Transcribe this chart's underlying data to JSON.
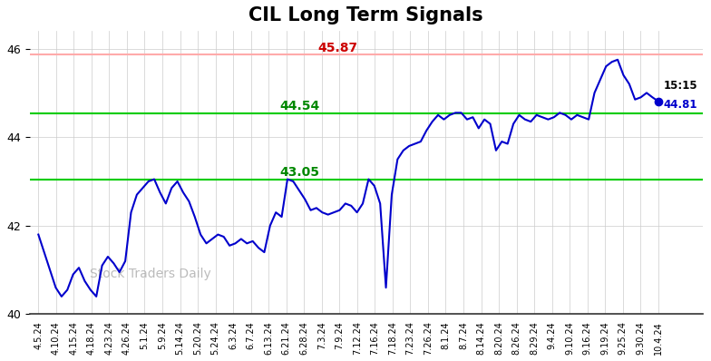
{
  "title": "CIL Long Term Signals",
  "watermark": "Stock Traders Daily",
  "hline_red": 45.87,
  "hline_green1": 44.54,
  "hline_green2": 43.05,
  "last_label_time": "15:15",
  "last_label_price": 44.81,
  "ylim": [
    40,
    46.4
  ],
  "xlabels": [
    "4.5.24",
    "4.10.24",
    "4.15.24",
    "4.18.24",
    "4.23.24",
    "4.26.24",
    "5.1.24",
    "5.9.24",
    "5.14.24",
    "5.20.24",
    "5.24.24",
    "6.3.24",
    "6.7.24",
    "6.13.24",
    "6.21.24",
    "6.28.24",
    "7.3.24",
    "7.9.24",
    "7.12.24",
    "7.16.24",
    "7.18.24",
    "7.23.24",
    "7.26.24",
    "8.1.24",
    "8.7.24",
    "8.14.24",
    "8.20.24",
    "8.26.24",
    "8.29.24",
    "9.4.24",
    "9.10.24",
    "9.16.24",
    "9.19.24",
    "9.25.24",
    "9.30.24",
    "10.4.24"
  ],
  "prices": [
    41.8,
    41.4,
    41.0,
    40.6,
    40.4,
    40.55,
    40.9,
    41.05,
    40.75,
    40.55,
    40.4,
    41.1,
    41.3,
    41.15,
    40.95,
    41.2,
    42.3,
    42.7,
    42.85,
    43.0,
    43.05,
    42.75,
    42.5,
    42.85,
    43.0,
    42.75,
    42.55,
    42.2,
    41.8,
    41.6,
    41.7,
    41.8,
    41.75,
    41.55,
    41.6,
    41.7,
    41.6,
    41.65,
    41.5,
    41.4,
    42.0,
    42.3,
    42.2,
    43.05,
    43.0,
    42.8,
    42.6,
    42.35,
    42.4,
    42.3,
    42.25,
    42.3,
    42.35,
    42.5,
    42.45,
    42.3,
    42.5,
    43.05,
    42.9,
    42.5,
    40.6,
    42.7,
    43.5,
    43.7,
    43.8,
    43.85,
    43.9,
    44.15,
    44.35,
    44.5,
    44.4,
    44.5,
    44.55,
    44.55,
    44.4,
    44.45,
    44.2,
    44.4,
    44.3,
    43.7,
    43.9,
    43.85,
    44.3,
    44.5,
    44.4,
    44.35,
    44.5,
    44.45,
    44.4,
    44.45,
    44.55,
    44.5,
    44.4,
    44.5,
    44.45,
    44.4,
    45.0,
    45.3,
    45.6,
    45.7,
    45.75,
    45.4,
    45.2,
    44.85,
    44.9,
    45.0,
    44.9,
    44.81
  ],
  "line_color": "#0000cc",
  "red_line_color": "#ffaaaa",
  "green_line_color": "#00cc00",
  "red_text_color": "#cc0000",
  "green_text_color": "#008800",
  "background_color": "#ffffff",
  "grid_color": "#cccccc"
}
